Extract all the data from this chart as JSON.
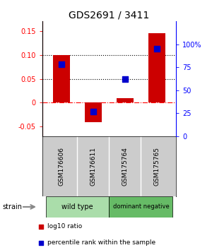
{
  "title": "GDS2691 / 3411",
  "samples": [
    "GSM176606",
    "GSM176611",
    "GSM175764",
    "GSM175765"
  ],
  "log10_ratio": [
    0.1,
    -0.04,
    0.01,
    0.145
  ],
  "percentile_rank_pct": [
    78,
    27,
    62,
    95
  ],
  "ylim_left": [
    -0.07,
    0.17
  ],
  "yticks_left": [
    -0.05,
    0.0,
    0.05,
    0.1,
    0.15
  ],
  "yticks_left_labels": [
    "-0.05",
    "0",
    "0.05",
    "0.10",
    "0.15"
  ],
  "yticks_right": [
    0,
    25,
    50,
    75,
    100
  ],
  "yticks_right_labels": [
    "0",
    "25",
    "50",
    "75",
    "100%"
  ],
  "bar_color": "#cc0000",
  "dot_color": "#0000cc",
  "bar_width": 0.55,
  "groups": [
    {
      "label": "wild type",
      "indices": [
        0,
        1
      ],
      "color": "#aaddaa"
    },
    {
      "label": "dominant negative",
      "indices": [
        2,
        3
      ],
      "color": "#66bb66"
    }
  ],
  "strain_label": "strain",
  "legend_items": [
    {
      "color": "#cc0000",
      "label": "log10 ratio"
    },
    {
      "color": "#0000cc",
      "label": "percentile rank within the sample"
    }
  ],
  "background_color": "#ffffff",
  "label_box_color": "#cccccc"
}
